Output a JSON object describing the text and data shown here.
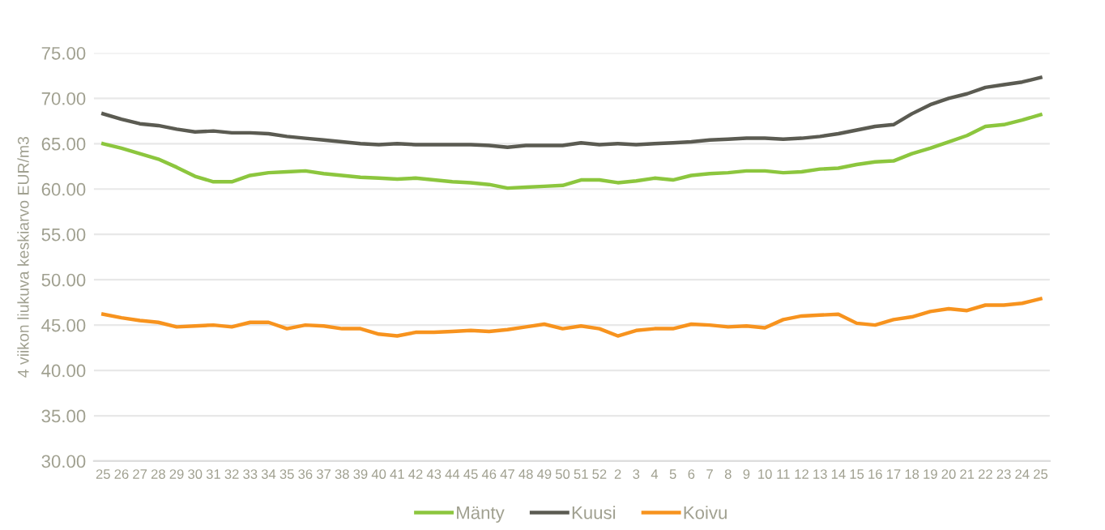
{
  "chart_data": {
    "type": "line",
    "ylabel": "4 viikon liukuva keskiarvo EUR/m3",
    "categories": [
      "25",
      "26",
      "27",
      "28",
      "29",
      "30",
      "31",
      "32",
      "33",
      "34",
      "35",
      "36",
      "37",
      "38",
      "39",
      "40",
      "41",
      "42",
      "43",
      "44",
      "45",
      "46",
      "47",
      "48",
      "49",
      "50",
      "51",
      "52",
      "2",
      "3",
      "4",
      "5",
      "6",
      "7",
      "8",
      "9",
      "10",
      "11",
      "12",
      "13",
      "14",
      "15",
      "16",
      "17",
      "18",
      "19",
      "20",
      "21",
      "22",
      "23",
      "24",
      "25"
    ],
    "series": [
      {
        "name": "Mänty",
        "color": "#8cc63e",
        "values": [
          65.0,
          64.5,
          63.9,
          63.3,
          62.4,
          61.4,
          60.8,
          60.8,
          61.5,
          61.8,
          61.9,
          62.0,
          61.7,
          61.5,
          61.3,
          61.2,
          61.1,
          61.2,
          61.0,
          60.8,
          60.7,
          60.5,
          60.1,
          60.2,
          60.3,
          60.4,
          61.0,
          61.0,
          60.7,
          60.9,
          61.2,
          61.0,
          61.5,
          61.7,
          61.8,
          62.0,
          62.0,
          61.8,
          61.9,
          62.2,
          62.3,
          62.7,
          63.0,
          63.1,
          63.9,
          64.5,
          65.2,
          65.9,
          66.9,
          67.1,
          67.6,
          68.2
        ]
      },
      {
        "name": "Kuusi",
        "color": "#5b5b52",
        "values": [
          68.3,
          67.7,
          67.2,
          67.0,
          66.6,
          66.3,
          66.4,
          66.2,
          66.2,
          66.1,
          65.8,
          65.6,
          65.4,
          65.2,
          65.0,
          64.9,
          65.0,
          64.9,
          64.9,
          64.9,
          64.9,
          64.8,
          64.6,
          64.8,
          64.8,
          64.8,
          65.1,
          64.9,
          65.0,
          64.9,
          65.0,
          65.1,
          65.2,
          65.4,
          65.5,
          65.6,
          65.6,
          65.5,
          65.6,
          65.8,
          66.1,
          66.5,
          66.9,
          67.1,
          68.3,
          69.3,
          70.0,
          70.5,
          71.2,
          71.5,
          71.8,
          72.3
        ]
      },
      {
        "name": "Koivu",
        "color": "#f7931e",
        "values": [
          46.2,
          45.8,
          45.5,
          45.3,
          44.8,
          44.9,
          45.0,
          44.8,
          45.3,
          45.3,
          44.6,
          45.0,
          44.9,
          44.6,
          44.6,
          44.0,
          43.8,
          44.2,
          44.2,
          44.3,
          44.4,
          44.3,
          44.5,
          44.8,
          45.1,
          44.6,
          44.9,
          44.6,
          43.8,
          44.4,
          44.6,
          44.6,
          45.1,
          45.0,
          44.8,
          44.9,
          44.7,
          45.6,
          46.0,
          46.1,
          46.2,
          45.2,
          45.0,
          45.6,
          45.9,
          46.5,
          46.8,
          46.6,
          47.2,
          47.2,
          47.4,
          47.9
        ]
      }
    ],
    "ylim": [
      30,
      75
    ],
    "yticks": [
      {
        "value": 30,
        "label": "30.00"
      },
      {
        "value": 35,
        "label": "35.00"
      },
      {
        "value": 40,
        "label": "40.00"
      },
      {
        "value": 45,
        "label": "45.00"
      },
      {
        "value": 50,
        "label": "50.00"
      },
      {
        "value": 55,
        "label": "55.00"
      },
      {
        "value": 60,
        "label": "60.00"
      },
      {
        "value": 65,
        "label": "65.00"
      },
      {
        "value": 70,
        "label": "70.00"
      },
      {
        "value": 75,
        "label": "75.00"
      }
    ],
    "grid": "y",
    "legend": "bottom",
    "marker": "none",
    "line_style": "solid"
  }
}
